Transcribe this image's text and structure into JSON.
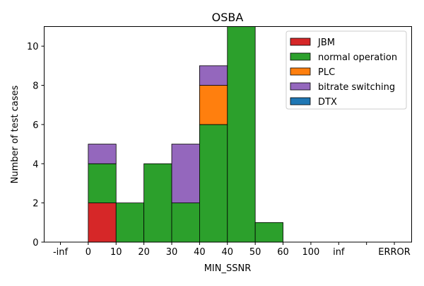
{
  "chart_data": {
    "type": "bar",
    "stacked": true,
    "title": "OSBA",
    "xlabel": "MIN_SSNR",
    "ylabel": "Number of test cases",
    "x_tick_labels": [
      "-inf",
      "0",
      "10",
      "20",
      "30",
      "40",
      "40",
      "50",
      "60",
      "100",
      "inf",
      "",
      "ERROR"
    ],
    "bins": [
      {
        "left_tick": 1,
        "right_tick": 2
      },
      {
        "left_tick": 2,
        "right_tick": 3
      },
      {
        "left_tick": 3,
        "right_tick": 4
      },
      {
        "left_tick": 4,
        "right_tick": 5
      },
      {
        "left_tick": 5,
        "right_tick": 6
      },
      {
        "left_tick": 6,
        "right_tick": 7
      },
      {
        "left_tick": 7,
        "right_tick": 8
      }
    ],
    "series": [
      {
        "name": "JBM",
        "color": "#d62728",
        "values": [
          2,
          0,
          0,
          0,
          0,
          0,
          0
        ]
      },
      {
        "name": "normal operation",
        "color": "#2ca02c",
        "values": [
          2,
          2,
          4,
          2,
          6,
          11,
          1
        ]
      },
      {
        "name": "PLC",
        "color": "#ff7f0e",
        "values": [
          0,
          0,
          0,
          0,
          2,
          0,
          0
        ]
      },
      {
        "name": "bitrate switching",
        "color": "#9467bd",
        "values": [
          1,
          0,
          0,
          3,
          1,
          0,
          0
        ]
      },
      {
        "name": "DTX",
        "color": "#1f77b4",
        "values": [
          0,
          0,
          0,
          0,
          0,
          0,
          0
        ]
      }
    ],
    "y_ticks": [
      0,
      2,
      4,
      6,
      8,
      10
    ],
    "ylim": [
      0,
      11
    ],
    "grid": false,
    "legend_position": "top-right"
  }
}
